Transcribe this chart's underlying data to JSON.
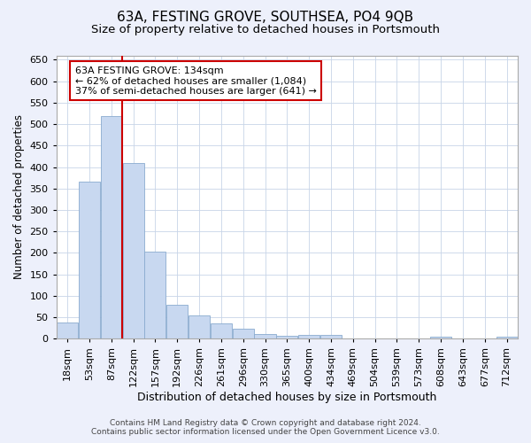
{
  "title": "63A, FESTING GROVE, SOUTHSEA, PO4 9QB",
  "subtitle": "Size of property relative to detached houses in Portsmouth",
  "xlabel": "Distribution of detached houses by size in Portsmouth",
  "ylabel": "Number of detached properties",
  "bar_color": "#c8d8f0",
  "bar_edge_color": "#8aabcf",
  "categories": [
    "18sqm",
    "53sqm",
    "87sqm",
    "122sqm",
    "157sqm",
    "192sqm",
    "226sqm",
    "261sqm",
    "296sqm",
    "330sqm",
    "365sqm",
    "400sqm",
    "434sqm",
    "469sqm",
    "504sqm",
    "539sqm",
    "573sqm",
    "608sqm",
    "643sqm",
    "677sqm",
    "712sqm"
  ],
  "values": [
    37,
    365,
    519,
    410,
    203,
    80,
    55,
    35,
    23,
    12,
    8,
    9,
    9,
    1,
    1,
    1,
    1,
    6,
    1,
    1,
    5
  ],
  "ylim": [
    0,
    660
  ],
  "yticks": [
    0,
    50,
    100,
    150,
    200,
    250,
    300,
    350,
    400,
    450,
    500,
    550,
    600,
    650
  ],
  "vline_x": 3.0,
  "vline_color": "#cc0000",
  "annotation_line1": "63A FESTING GROVE: 134sqm",
  "annotation_line2": "← 62% of detached houses are smaller (1,084)",
  "annotation_line3": "37% of semi-detached houses are larger (641) →",
  "footer_line1": "Contains HM Land Registry data © Crown copyright and database right 2024.",
  "footer_line2": "Contains public sector information licensed under the Open Government Licence v3.0.",
  "background_color": "#edf0fb",
  "plot_bg_color": "#ffffff",
  "grid_color": "#c8d4e8",
  "title_fontsize": 11,
  "subtitle_fontsize": 9.5,
  "tick_fontsize": 8,
  "ylabel_fontsize": 8.5,
  "xlabel_fontsize": 9,
  "annotation_fontsize": 8,
  "footer_fontsize": 6.5
}
